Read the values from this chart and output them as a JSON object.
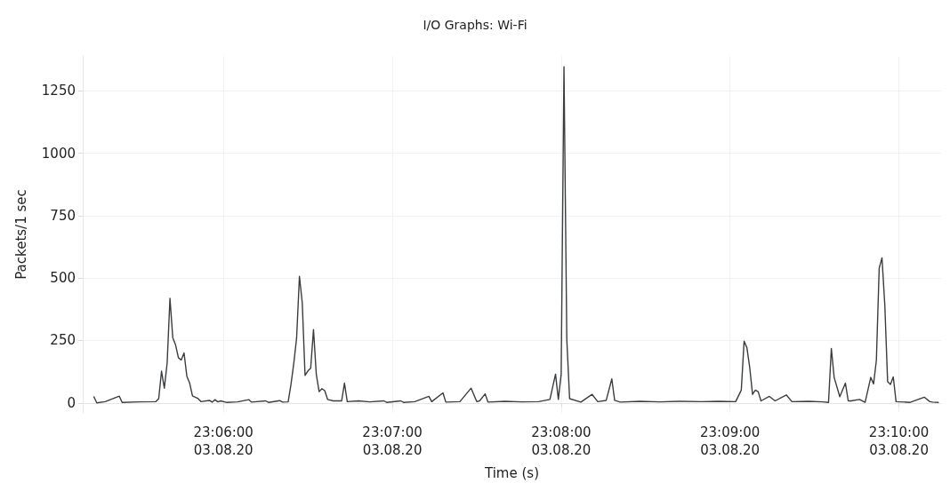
{
  "chart_data": {
    "type": "line",
    "title": "I/O Graphs: Wi-Fi",
    "xlabel": "Time (s)",
    "ylabel": "Packets/1 sec",
    "xlim": [
      "--08-03T23:05:10",
      "--08-03T23:10:15"
    ],
    "xticks": [
      {
        "value": "--08-03T23:06:00",
        "label": "23:06:00\n03.08.20"
      },
      {
        "value": "--08-03T23:07:00",
        "label": "23:07:00\n03.08.20"
      },
      {
        "value": "--08-03T23:08:00",
        "label": "23:08:00\n03.08.20"
      },
      {
        "value": "--08-03T23:09:00",
        "label": "23:09:00\n03.08.20"
      },
      {
        "value": "--08-03T23:10:00",
        "label": "23:10:00\n03.08.20"
      }
    ],
    "ylim": [
      -40,
      1390
    ],
    "yticks": [
      0,
      250,
      500,
      750,
      1000,
      1250
    ],
    "grid": true,
    "marker": "none",
    "line_style": "solid",
    "series": [
      {
        "color": "#3a3d3f",
        "x": [
          "--08-03T23:05:14",
          "--08-03T23:05:15",
          "--08-03T23:05:18",
          "--08-03T23:05:23",
          "--08-03T23:05:24",
          "--08-03T23:05:30",
          "--08-03T23:05:36",
          "--08-03T23:05:37",
          "--08-03T23:05:38",
          "--08-03T23:05:39",
          "--08-03T23:05:40",
          "--08-03T23:05:41",
          "--08-03T23:05:42",
          "--08-03T23:05:43",
          "--08-03T23:05:44",
          "--08-03T23:05:45",
          "--08-03T23:05:46",
          "--08-03T23:05:47",
          "--08-03T23:05:48",
          "--08-03T23:05:49",
          "--08-03T23:05:51",
          "--08-03T23:05:52",
          "--08-03T23:05:55",
          "--08-03T23:05:56",
          "--08-03T23:05:57",
          "--08-03T23:05:58",
          "--08-03T23:05:59",
          "--08-03T23:06:01",
          "--08-03T23:06:05",
          "--08-03T23:06:09",
          "--08-03T23:06:10",
          "--08-03T23:06:15",
          "--08-03T23:06:16",
          "--08-03T23:06:20",
          "--08-03T23:06:21",
          "--08-03T23:06:23",
          "--08-03T23:06:24",
          "--08-03T23:06:25",
          "--08-03T23:06:26",
          "--08-03T23:06:27",
          "--08-03T23:06:28",
          "--08-03T23:06:29",
          "--08-03T23:06:30",
          "--08-03T23:06:31",
          "--08-03T23:06:32",
          "--08-03T23:06:33",
          "--08-03T23:06:34",
          "--08-03T23:06:35",
          "--08-03T23:06:36",
          "--08-03T23:06:37",
          "--08-03T23:06:39",
          "--08-03T23:06:42",
          "--08-03T23:06:43",
          "--08-03T23:06:44",
          "--08-03T23:06:48",
          "--08-03T23:06:52",
          "--08-03T23:06:57",
          "--08-03T23:06:58",
          "--08-03T23:07:03",
          "--08-03T23:07:04",
          "--08-03T23:07:08",
          "--08-03T23:07:13",
          "--08-03T23:07:14",
          "--08-03T23:07:18",
          "--08-03T23:07:19",
          "--08-03T23:07:24",
          "--08-03T23:07:28",
          "--08-03T23:07:30",
          "--08-03T23:07:31",
          "--08-03T23:07:33",
          "--08-03T23:07:34",
          "--08-03T23:07:40",
          "--08-03T23:07:46",
          "--08-03T23:07:52",
          "--08-03T23:07:56",
          "--08-03T23:07:58",
          "--08-03T23:07:59",
          "--08-03T23:08:00",
          "--08-03T23:08:01",
          "--08-03T23:08:02",
          "--08-03T23:08:03",
          "--08-03T23:08:07",
          "--08-03T23:08:11",
          "--08-03T23:08:13",
          "--08-03T23:08:16",
          "--08-03T23:08:18",
          "--08-03T23:08:19",
          "--08-03T23:08:21",
          "--08-03T23:08:28",
          "--08-03T23:08:35",
          "--08-03T23:08:42",
          "--08-03T23:08:50",
          "--08-03T23:08:56",
          "--08-03T23:09:02",
          "--08-03T23:09:04",
          "--08-03T23:09:05",
          "--08-03T23:09:06",
          "--08-03T23:09:07",
          "--08-03T23:09:08",
          "--08-03T23:09:09",
          "--08-03T23:09:10",
          "--08-03T23:09:11",
          "--08-03T23:09:14",
          "--08-03T23:09:16",
          "--08-03T23:09:20",
          "--08-03T23:09:22",
          "--08-03T23:09:28",
          "--08-03T23:09:33",
          "--08-03T23:09:35",
          "--08-03T23:09:36",
          "--08-03T23:09:37",
          "--08-03T23:09:39",
          "--08-03T23:09:41",
          "--08-03T23:09:42",
          "--08-03T23:09:43",
          "--08-03T23:09:46",
          "--08-03T23:09:48",
          "--08-03T23:09:50",
          "--08-03T23:09:51",
          "--08-03T23:09:52",
          "--08-03T23:09:53",
          "--08-03T23:09:54",
          "--08-03T23:09:55",
          "--08-03T23:09:56",
          "--08-03T23:09:57",
          "--08-03T23:09:58",
          "--08-03T23:09:59",
          "--08-03T23:10:04",
          "--08-03T23:10:09",
          "--08-03T23:10:11",
          "--08-03T23:10:12",
          "--08-03T23:10:14"
        ],
        "values": [
          24,
          0,
          5,
          27,
          2,
          4,
          5,
          17,
          127,
          59,
          160,
          419,
          261,
          232,
          181,
          172,
          200,
          107,
          79,
          28,
          17,
          5,
          10,
          3,
          13,
          4,
          8,
          2,
          4,
          13,
          3,
          8,
          2,
          9,
          3,
          4,
          74,
          159,
          260,
          507,
          402,
          110,
          128,
          139,
          294,
          113,
          45,
          57,
          49,
          14,
          8,
          8,
          79,
          5,
          8,
          4,
          8,
          2,
          8,
          2,
          5,
          26,
          5,
          40,
          3,
          5,
          59,
          5,
          8,
          36,
          3,
          6,
          4,
          5,
          14,
          115,
          14,
          115,
          1347,
          255,
          17,
          3,
          34,
          5,
          10,
          96,
          10,
          3,
          6,
          4,
          6,
          5,
          6,
          5,
          51,
          247,
          221,
          142,
          34,
          51,
          45,
          8,
          26,
          8,
          32,
          5,
          6,
          4,
          2,
          218,
          102,
          25,
          79,
          8,
          8,
          14,
          2,
          102,
          76,
          170,
          540,
          581,
          391,
          85,
          74,
          104,
          5,
          2,
          23,
          5,
          3,
          2
        ]
      }
    ]
  }
}
